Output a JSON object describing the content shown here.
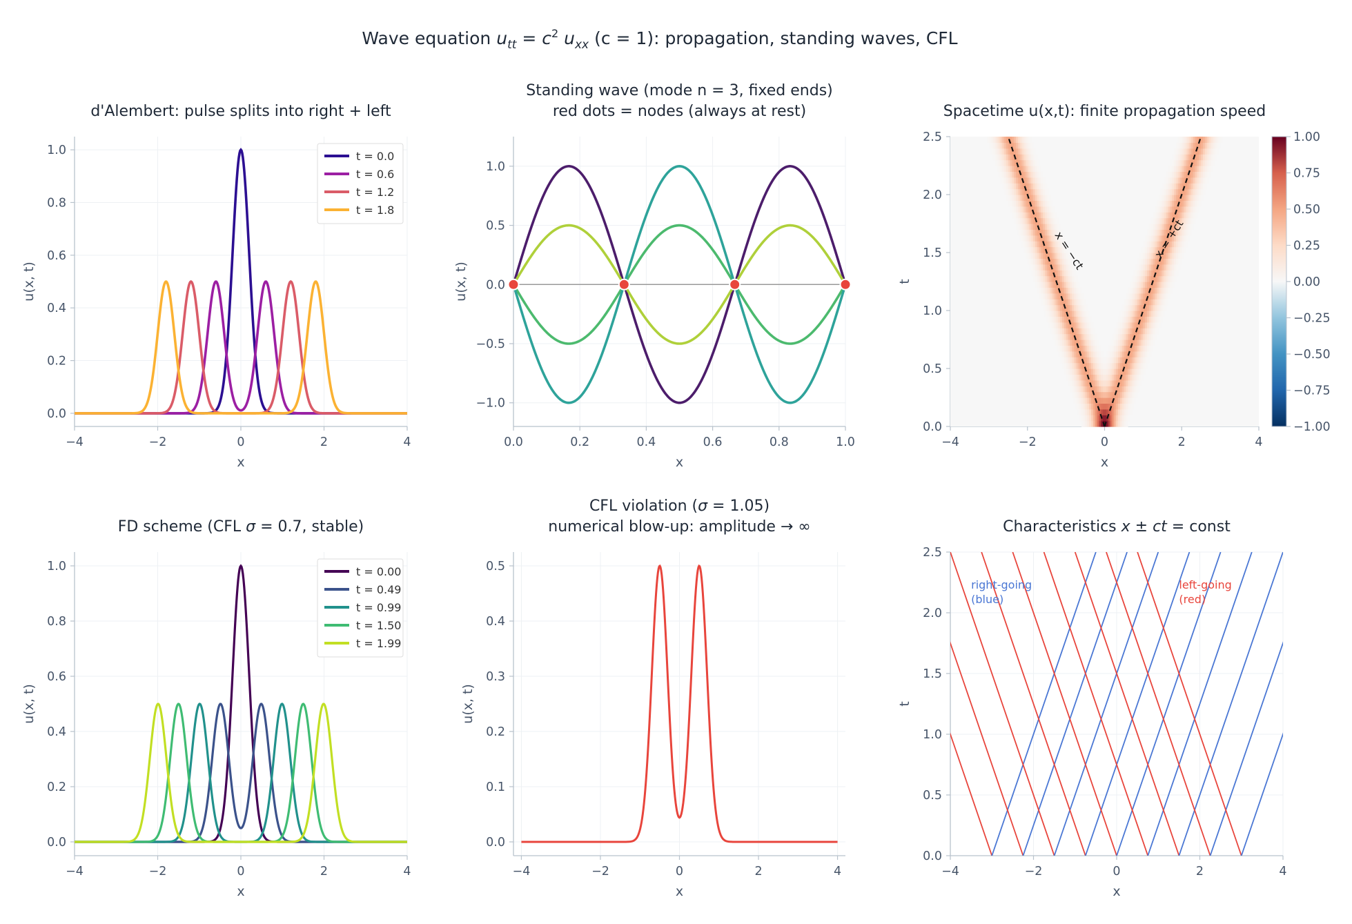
{
  "figure": {
    "title": "Wave equation  u_tt = c² u_xx  (c = 1):  propagation, standing waves, CFL",
    "title_parts": {
      "lead": "Wave equation  ",
      "u": "u",
      "tt": "tt",
      "eq": " = ",
      "c": "c",
      "sq": "2",
      "u2": " u",
      "xx": "xx",
      "tail": "  (c = 1):  propagation, standing waves, CFL"
    }
  },
  "colors": {
    "axis": "#b8c2cc",
    "grid": "#eef1f4",
    "tick_text": "#475569",
    "title_text": "#1f2937",
    "red_line": "#e8453c",
    "blue_line": "#4a77d4",
    "node_fill": "#e8453c"
  },
  "chart_data": [
    {
      "id": "dalembert",
      "type": "line",
      "title": "d'Alembert: pulse splits into right + left",
      "xlabel": "x",
      "ylabel": "u(x, t)",
      "xlim": [
        -4,
        4
      ],
      "ylim": [
        -0.05,
        1.05
      ],
      "xticks": [
        -4,
        -2,
        0,
        2,
        4
      ],
      "xtick_labels": [
        "−4",
        "−2",
        "0",
        "2",
        "4"
      ],
      "yticks": [
        0.0,
        0.2,
        0.4,
        0.6,
        0.8,
        1.0
      ],
      "ytick_labels": [
        "0.0",
        "0.2",
        "0.4",
        "0.6",
        "0.8",
        "1.0"
      ],
      "grid": true,
      "legend": "top-right",
      "pulse_width_sigma": 0.2,
      "series": [
        {
          "name": "t = 0.0",
          "t": 0.0,
          "color": "#2c0f92"
        },
        {
          "name": "t = 0.6",
          "t": 0.6,
          "color": "#9c1fa3"
        },
        {
          "name": "t = 1.2",
          "t": 1.2,
          "color": "#da5c68"
        },
        {
          "name": "t = 1.8",
          "t": 1.8,
          "color": "#fbb233"
        }
      ]
    },
    {
      "id": "standing",
      "type": "line",
      "title_lines": [
        "Standing wave  (mode n = 3, fixed ends)",
        "red dots = nodes (always at rest)"
      ],
      "xlabel": "x",
      "ylabel": "u(x, t)",
      "xlim": [
        0,
        1
      ],
      "ylim": [
        -1.2,
        1.25
      ],
      "xticks": [
        0,
        0.2,
        0.4,
        0.6,
        0.8,
        1.0
      ],
      "xtick_labels": [
        "0.0",
        "0.2",
        "0.4",
        "0.6",
        "0.8",
        "1.0"
      ],
      "yticks": [
        -1.0,
        -0.5,
        0.0,
        0.5,
        1.0
      ],
      "ytick_labels": [
        "−1.0",
        "−0.5",
        "0.0",
        "0.5",
        "1.0"
      ],
      "grid": true,
      "mode": 3,
      "series": [
        {
          "amplitude": 1.0,
          "color": "#4c1d6b"
        },
        {
          "amplitude": 0.5,
          "color": "#afd03a"
        },
        {
          "amplitude": -0.5,
          "color": "#4cba6e"
        },
        {
          "amplitude": -1.0,
          "color": "#2ea39a"
        }
      ],
      "nodes_x": [
        0,
        0.3333,
        0.6667,
        1.0
      ]
    },
    {
      "id": "spacetime",
      "type": "heatmap",
      "title": "Spacetime  u(x,t):  finite propagation speed",
      "xlabel": "x",
      "ylabel": "t",
      "xlim": [
        -4,
        4
      ],
      "ylim": [
        0,
        2.5
      ],
      "xticks": [
        -4,
        -2,
        0,
        2,
        4
      ],
      "xtick_labels": [
        "−4",
        "−2",
        "0",
        "2",
        "4"
      ],
      "yticks": [
        0.0,
        0.5,
        1.0,
        1.5,
        2.0,
        2.5
      ],
      "ytick_labels": [
        "0.0",
        "0.5",
        "1.0",
        "1.5",
        "2.0",
        "2.5"
      ],
      "colormap": "RdBu_r",
      "clim": [
        -1.0,
        1.0
      ],
      "colorbar_ticks": [
        1.0,
        0.75,
        0.5,
        0.25,
        0.0,
        -0.25,
        -0.5,
        -0.75,
        -1.0
      ],
      "colorbar_tick_labels": [
        "1.00",
        "0.75",
        "0.50",
        "0.25",
        "0.00",
        "−0.25",
        "−0.50",
        "−0.75",
        "−1.00"
      ],
      "characteristic_labels": [
        "x = −ct",
        "x = +ct"
      ]
    },
    {
      "id": "fd_stable",
      "type": "line",
      "title": "FD scheme  (CFL σ = 0.7, stable)",
      "title_parts": {
        "lead": "FD scheme  (CFL ",
        "sigma": "σ",
        "tail": " = 0.7, stable)"
      },
      "xlabel": "x",
      "ylabel": "u(x, t)",
      "xlim": [
        -4,
        4
      ],
      "ylim": [
        -0.05,
        1.05
      ],
      "xticks": [
        -4,
        -2,
        0,
        2,
        4
      ],
      "xtick_labels": [
        "−4",
        "−2",
        "0",
        "2",
        "4"
      ],
      "yticks": [
        0.0,
        0.2,
        0.4,
        0.6,
        0.8,
        1.0
      ],
      "ytick_labels": [
        "0.0",
        "0.2",
        "0.4",
        "0.6",
        "0.8",
        "1.0"
      ],
      "grid": true,
      "legend": "top-right",
      "pulse_width_sigma": 0.2,
      "series": [
        {
          "name": "t = 0.00",
          "t": 0.0,
          "color": "#440154"
        },
        {
          "name": "t = 0.49",
          "t": 0.49,
          "color": "#3b528b"
        },
        {
          "name": "t = 0.99",
          "t": 0.99,
          "color": "#21918c"
        },
        {
          "name": "t = 1.50",
          "t": 1.5,
          "color": "#3fbc73"
        },
        {
          "name": "t = 1.99",
          "t": 1.99,
          "color": "#c2df23"
        }
      ]
    },
    {
      "id": "cfl_violation",
      "type": "line",
      "title_lines": [
        "CFL violation  (σ = 1.05)",
        "numerical blow-up: amplitude  → ∞"
      ],
      "title_parts": {
        "lead": "CFL violation  (",
        "sigma": "σ",
        "tail": " = 1.05)"
      },
      "xlabel": "x",
      "ylabel": "u(x, t)",
      "xlim": [
        -4.2,
        4.2
      ],
      "ylim": [
        -0.025,
        0.525
      ],
      "xticks": [
        -4,
        -2,
        0,
        2,
        4
      ],
      "xtick_labels": [
        "−4",
        "−2",
        "0",
        "2",
        "4"
      ],
      "yticks": [
        0.0,
        0.1,
        0.2,
        0.3,
        0.4,
        0.5
      ],
      "ytick_labels": [
        "0.0",
        "0.1",
        "0.2",
        "0.3",
        "0.4",
        "0.5"
      ],
      "grid": true,
      "pulse_width_sigma": 0.2,
      "series": [
        {
          "t": 0.5,
          "color": "#e8453c"
        }
      ]
    },
    {
      "id": "characteristics",
      "type": "line",
      "title": "Characteristics  x ± ct =  const",
      "title_parts": {
        "lead": "Characteristics  ",
        "math": "x ± ct",
        "tail": " =  const"
      },
      "xlabel": "x",
      "ylabel": "t",
      "xlim": [
        -4,
        4
      ],
      "ylim": [
        0,
        2.5
      ],
      "xticks": [
        -4,
        -2,
        0,
        2,
        4
      ],
      "xtick_labels": [
        "−4",
        "−2",
        "0",
        "2",
        "4"
      ],
      "yticks": [
        0.0,
        0.5,
        1.0,
        1.5,
        2.0,
        2.5
      ],
      "ytick_labels": [
        "0.0",
        "0.5",
        "1.0",
        "1.5",
        "2.0",
        "2.5"
      ],
      "grid": true,
      "x0_values": [
        -3.0,
        -2.25,
        -1.5,
        -0.75,
        0.0,
        0.75,
        1.5,
        2.25,
        3.0
      ],
      "right_going_color": "#4a77d4",
      "left_going_color": "#e8453c",
      "annotations": [
        {
          "lines": [
            "right-going",
            "(blue)"
          ],
          "x": -3.5,
          "y": 2.2,
          "color": "#4a77d4"
        },
        {
          "lines": [
            "left-going",
            "(red)"
          ],
          "x": 1.5,
          "y": 2.2,
          "color": "#e8453c"
        }
      ]
    }
  ]
}
